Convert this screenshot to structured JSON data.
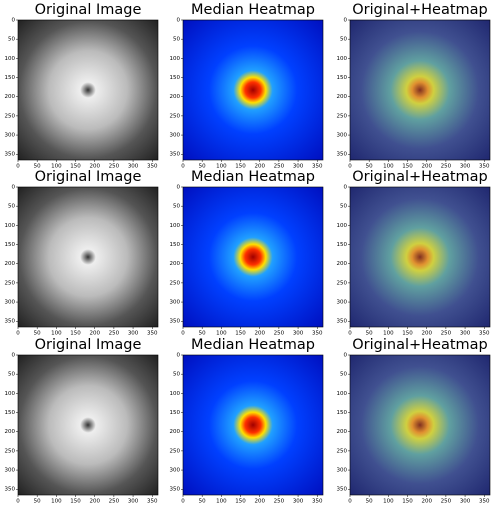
{
  "axes": {
    "xlim": [
      0,
      365
    ],
    "ylim": [
      0,
      365
    ],
    "xticks": [
      0,
      50,
      100,
      150,
      200,
      250,
      300,
      350
    ],
    "yticks": [
      0,
      50,
      100,
      150,
      200,
      250,
      300,
      350
    ]
  },
  "panels": [
    {
      "title": "Original Image"
    },
    {
      "title": "Median Heatmap"
    },
    {
      "title": "Original+Heatmap"
    },
    {
      "title": "Original Image"
    },
    {
      "title": "Median Heatmap"
    },
    {
      "title": "Original+Heatmap"
    },
    {
      "title": "Original Image"
    },
    {
      "title": "Median Heatmap"
    },
    {
      "title": "Original+Heatmap"
    }
  ]
}
